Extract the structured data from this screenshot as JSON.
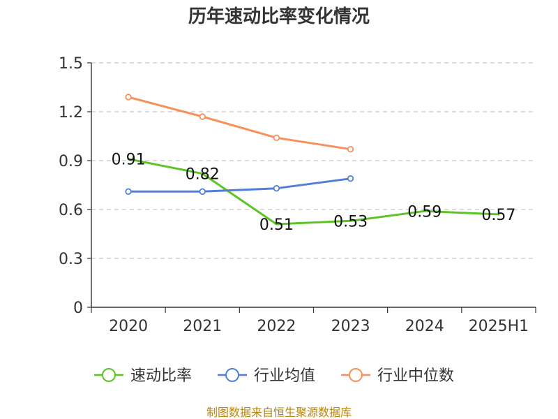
{
  "chart_data": {
    "type": "line",
    "title": "历年速动比率变化情况",
    "categories": [
      "2020",
      "2021",
      "2022",
      "2023",
      "2024",
      "2025H1"
    ],
    "ylim": [
      0,
      1.5
    ],
    "yticks": [
      "0",
      "0.3",
      "0.6",
      "0.9",
      "1.2",
      "1.5"
    ],
    "ytick_values": [
      0,
      0.3,
      0.6,
      0.9,
      1.2,
      1.5
    ],
    "grid": true,
    "legend_position": "bottom",
    "series": [
      {
        "name": "速动比率",
        "color": "#5cc424",
        "values": [
          0.91,
          0.82,
          0.51,
          0.53,
          0.59,
          0.57
        ],
        "labels": [
          "0.91",
          "0.82",
          "0.51",
          "0.53",
          "0.59",
          "0.57"
        ],
        "markers": false
      },
      {
        "name": "行业均值",
        "color": "#4f7fd8",
        "values": [
          0.71,
          0.71,
          0.73,
          0.79,
          null,
          null
        ],
        "markers": true
      },
      {
        "name": "行业中位数",
        "color": "#f7905a",
        "values": [
          1.29,
          1.17,
          1.04,
          0.97,
          null,
          null
        ],
        "markers": true
      }
    ]
  },
  "source": "制图数据来自恒生聚源数据库"
}
